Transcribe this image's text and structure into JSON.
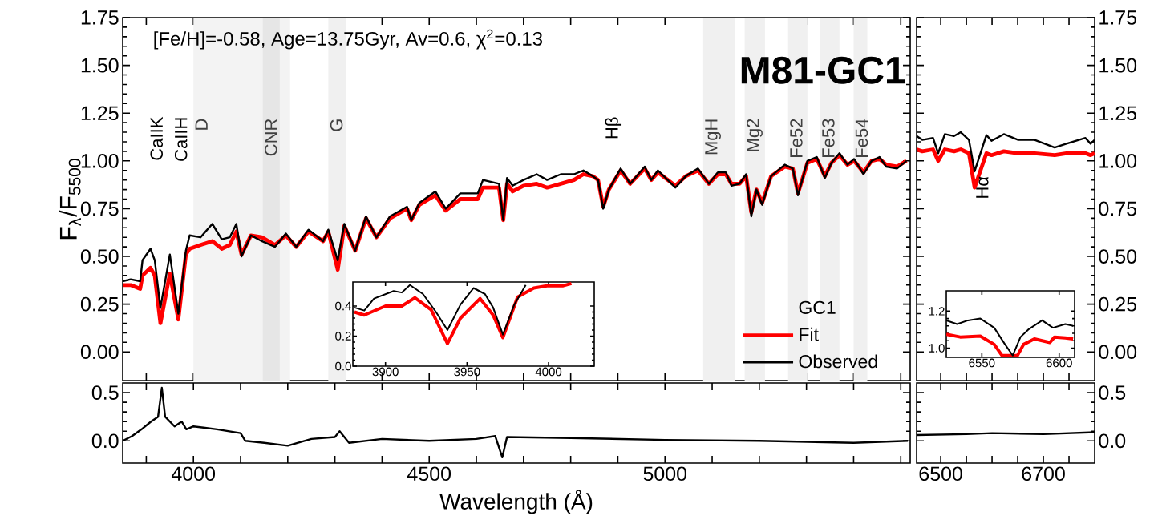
{
  "chart_data": [
    {
      "type": "line",
      "ylabel": "F$_{λ}$/F$_{5500}$",
      "legend_title": "GC1",
      "legend": "bottom right",
      "tick_labels": "y",
      "annotations": [
        "[Fe/H]=-0.58, Age=13.75Gyr, Av=0.6, χ$^{2}$=0.13",
        "M81-GC1",
        "CaIIK",
        "CaIIH",
        "Hβ"
      ],
      "bands": [
        {
          "axis": "x",
          "from": 4000,
          "to": 4205,
          "label": "D",
          "color": "#f3f3f3"
        },
        {
          "axis": "x",
          "from": 4147,
          "to": 4183,
          "label": "CNR",
          "color": "#e6e6e6"
        },
        {
          "axis": "x",
          "from": 4286,
          "to": 4324,
          "label": "G",
          "color": "#f0f0f0"
        },
        {
          "axis": "x",
          "from": 5081,
          "to": 5149,
          "label": "MgH",
          "color": "#f0f0f0"
        },
        {
          "axis": "x",
          "from": 5169,
          "to": 5212,
          "label": "Mg2",
          "color": "#f0f0f0"
        },
        {
          "axis": "x",
          "from": 5261,
          "to": 5302,
          "label": "Fe52",
          "color": "#f0f0f0"
        },
        {
          "axis": "x",
          "from": 5329,
          "to": 5370,
          "label": "Fe53",
          "color": "#f0f0f0"
        },
        {
          "axis": "x",
          "from": 5400,
          "to": 5429,
          "label": "Fe54",
          "color": "#f0f0f0"
        }
      ],
      "x": [
        3850,
        3867,
        3887,
        3892,
        3909,
        3918,
        3930,
        3950,
        3968,
        3984,
        3992,
        4015,
        4040,
        4060,
        4077,
        4091,
        4102,
        4122,
        4145,
        4173,
        4196,
        4218,
        4244,
        4275,
        4286,
        4306,
        4320,
        4343,
        4366,
        4388,
        4417,
        4453,
        4462,
        4479,
        4513,
        4535,
        4566,
        4603,
        4614,
        4648,
        4657,
        4665,
        4677,
        4700,
        4728,
        4750,
        4779,
        4807,
        4827,
        4847,
        4858,
        4869,
        4881,
        4906,
        4926,
        4957,
        4971,
        4985,
        5022,
        5044,
        5070,
        5093,
        5112,
        5129,
        5141,
        5158,
        5172,
        5183,
        5194,
        5206,
        5225,
        5254,
        5271,
        5282,
        5302,
        5322,
        5339,
        5353,
        5370,
        5387,
        5401,
        5421,
        5438,
        5455,
        5469,
        5492,
        5512
      ],
      "series": [
        {
          "name": "Fit",
          "color": "#ff0000",
          "values": [
            0.35,
            0.35,
            0.33,
            0.4,
            0.44,
            0.4,
            0.15,
            0.41,
            0.17,
            0.51,
            0.54,
            0.56,
            0.58,
            0.54,
            0.56,
            0.63,
            0.51,
            0.61,
            0.6,
            0.56,
            0.61,
            0.55,
            0.63,
            0.58,
            0.63,
            0.43,
            0.66,
            0.53,
            0.7,
            0.6,
            0.7,
            0.75,
            0.69,
            0.77,
            0.82,
            0.74,
            0.8,
            0.8,
            0.86,
            0.86,
            0.69,
            0.88,
            0.84,
            0.87,
            0.88,
            0.86,
            0.88,
            0.9,
            0.93,
            0.92,
            0.9,
            0.76,
            0.85,
            0.95,
            0.88,
            0.96,
            0.9,
            0.94,
            0.87,
            0.92,
            0.95,
            0.88,
            0.93,
            0.93,
            0.88,
            0.88,
            0.92,
            0.73,
            0.85,
            0.78,
            0.92,
            0.97,
            0.96,
            0.83,
            0.99,
            1.01,
            0.92,
            0.99,
            1.03,
            0.98,
            1.0,
            0.94,
            1.0,
            1.01,
            0.98,
            0.97,
            1.0
          ]
        },
        {
          "name": "Observed",
          "color": "#000000",
          "values": [
            0.37,
            0.38,
            0.37,
            0.48,
            0.54,
            0.48,
            0.23,
            0.51,
            0.2,
            0.53,
            0.61,
            0.6,
            0.67,
            0.59,
            0.6,
            0.67,
            0.5,
            0.61,
            0.58,
            0.55,
            0.62,
            0.55,
            0.64,
            0.58,
            0.64,
            0.48,
            0.67,
            0.53,
            0.71,
            0.6,
            0.71,
            0.76,
            0.69,
            0.78,
            0.84,
            0.75,
            0.83,
            0.83,
            0.9,
            0.88,
            0.69,
            0.91,
            0.87,
            0.9,
            0.93,
            0.9,
            0.93,
            0.93,
            0.95,
            0.92,
            0.9,
            0.75,
            0.85,
            0.96,
            0.88,
            0.97,
            0.9,
            0.95,
            0.86,
            0.92,
            0.96,
            0.88,
            0.94,
            0.94,
            0.87,
            0.88,
            0.93,
            0.71,
            0.85,
            0.77,
            0.92,
            0.98,
            0.96,
            0.82,
            1.0,
            1.02,
            0.91,
            0.99,
            1.04,
            0.98,
            1.01,
            0.93,
            1.0,
            1.02,
            0.97,
            0.96,
            1.0
          ]
        }
      ],
      "xlim": [
        3850,
        5520
      ],
      "ylim": [
        -0.15,
        1.75
      ],
      "xticks": [
        {
          "value": 3900,
          "label": null
        },
        4000,
        {
          "value": 4100,
          "label": null
        },
        {
          "value": 4200,
          "label": null
        },
        {
          "value": 4300,
          "label": null
        },
        {
          "value": 4400,
          "label": null
        },
        4500,
        {
          "value": 4600,
          "label": null
        },
        {
          "value": 4700,
          "label": null
        },
        {
          "value": 4800,
          "label": null
        },
        {
          "value": 4900,
          "label": null
        },
        5000,
        {
          "value": 5100,
          "label": null
        },
        {
          "value": 5200,
          "label": null
        },
        {
          "value": 5300,
          "label": null
        },
        {
          "value": 5400,
          "label": null
        },
        {
          "value": 5500,
          "label": null
        }
      ],
      "yticks": [
        {
          "value": 0,
          "label": "0.00"
        },
        {
          "value": 0.25,
          "label": "0.25"
        },
        {
          "value": 0.5,
          "label": "0.50"
        },
        {
          "value": 0.75,
          "label": "0.75"
        },
        {
          "value": 1,
          "label": "1.00"
        },
        {
          "value": 1.25,
          "label": "1.25"
        },
        {
          "value": 1.5,
          "label": "1.50"
        },
        {
          "value": 1.75,
          "label": "1.75"
        }
      ]
    },
    {
      "type": "line",
      "series": [
        {
          "color": "#ff0000",
          "x": [
            3881,
            3887,
            3900,
            3910,
            3918,
            3928,
            3938,
            3946,
            3958,
            3966,
            3972,
            3981,
            3991,
            3999,
            4009,
            4014
          ],
          "values": [
            0.36,
            0.34,
            0.4,
            0.4,
            0.455,
            0.375,
            0.15,
            0.32,
            0.45,
            0.34,
            0.19,
            0.46,
            0.52,
            0.535,
            0.535,
            0.55
          ]
        },
        {
          "color": "#000000",
          "x": [
            3881,
            3887,
            3893,
            3905,
            3910,
            3915,
            3923,
            3931,
            3938,
            3946,
            3954,
            3961,
            3966,
            3972,
            3979,
            3986
          ],
          "values": [
            0.39,
            0.37,
            0.45,
            0.5,
            0.49,
            0.54,
            0.48,
            0.36,
            0.24,
            0.41,
            0.52,
            0.48,
            0.39,
            0.21,
            0.41,
            0.54
          ]
        }
      ],
      "xlim": [
        3880,
        4028
      ],
      "ylim": [
        0,
        0.56
      ],
      "xticks": [
        3900,
        3950,
        4000
      ],
      "yticks": [
        {
          "value": 0,
          "label": "0.0"
        },
        {
          "value": 0.2,
          "label": "0.2"
        },
        {
          "value": 0.4,
          "label": "0.4"
        }
      ]
    },
    {
      "type": "line",
      "tick_labels": "y",
      "annotations": [
        {
          "text": "Hα",
          "x": 6581,
          "y": 0.93
        }
      ],
      "x": [
        6453,
        6464,
        6485,
        6495,
        6508,
        6526,
        6539,
        6555,
        6566,
        6589,
        6599,
        6623,
        6651,
        6683,
        6722,
        6745,
        6782,
        6792,
        6800
      ],
      "series": [
        {
          "color": "#ff0000",
          "values": [
            1.06,
            1.05,
            1.06,
            1.0,
            1.06,
            1.05,
            1.06,
            1.04,
            0.86,
            1.04,
            1.03,
            1.05,
            1.04,
            1.04,
            1.03,
            1.04,
            1.04,
            1.03,
            1.04
          ]
        },
        {
          "color": "#000000",
          "values": [
            1.13,
            1.11,
            1.12,
            1.04,
            1.14,
            1.13,
            1.15,
            1.11,
            0.945,
            1.135,
            1.105,
            1.14,
            1.11,
            1.11,
            1.07,
            1.09,
            1.12,
            1.09,
            1.11
          ]
        }
      ],
      "xlim": [
        6453,
        6800
      ],
      "ylim": [
        -0.15,
        1.75
      ],
      "xticks": [
        6500,
        {
          "value": 6550,
          "label": null
        },
        {
          "value": 6600,
          "label": null
        },
        {
          "value": 6650,
          "label": null
        },
        6700,
        {
          "value": 6750,
          "label": null
        }
      ],
      "yticks": [
        {
          "value": 0,
          "label": "0.00"
        },
        {
          "value": 0.25,
          "label": "0.25"
        },
        {
          "value": 0.5,
          "label": "0.50"
        },
        {
          "value": 0.75,
          "label": "0.75"
        },
        {
          "value": 1,
          "label": "1.00"
        },
        {
          "value": 1.25,
          "label": "1.25"
        },
        {
          "value": 1.5,
          "label": "1.50"
        },
        {
          "value": 1.75,
          "label": "1.75"
        }
      ]
    },
    {
      "type": "line",
      "series": [
        {
          "color": "#ff0000",
          "x": [
            6527,
            6536,
            6549,
            6558,
            6563,
            6573,
            6577,
            6584,
            6594,
            6597,
            6604,
            6609
          ],
          "values": [
            1.075,
            1.06,
            1.065,
            1.02,
            0.96,
            0.96,
            1.02,
            1.05,
            1.03,
            1.06,
            1.055,
            1.05
          ]
        },
        {
          "color": "#000000",
          "x": [
            6527,
            6534,
            6541,
            6549,
            6558,
            6565,
            6570,
            6575,
            6580,
            6589,
            6596,
            6604,
            6609
          ],
          "values": [
            1.15,
            1.13,
            1.15,
            1.16,
            1.11,
            1.02,
            0.96,
            1.06,
            1.1,
            1.15,
            1.11,
            1.13,
            1.12
          ]
        }
      ],
      "xlim": [
        6527,
        6610
      ],
      "ylim": [
        0.95,
        1.31
      ],
      "xticks": [
        6550,
        6600
      ],
      "yticks": [
        {
          "value": 1,
          "label": "1.0"
        },
        {
          "value": 1.2,
          "label": "1.2"
        }
      ]
    },
    {
      "type": "line",
      "xlabel": "Wavelength (Å)",
      "x": [
        3850,
        3870,
        3890,
        3910,
        3925,
        3933,
        3940,
        3960,
        3975,
        3985,
        4000,
        4050,
        4100,
        4110,
        4150,
        4200,
        4250,
        4300,
        4310,
        4330,
        4400,
        4500,
        4600,
        4640,
        4655,
        4665,
        4800,
        5000,
        5200,
        5400,
        5515
      ],
      "series": [
        {
          "color": "#000000",
          "values": [
            0.0,
            0.05,
            0.12,
            0.2,
            0.25,
            0.55,
            0.25,
            0.15,
            0.2,
            0.12,
            0.15,
            0.12,
            0.08,
            0.0,
            -0.02,
            -0.05,
            0.02,
            0.04,
            0.1,
            -0.02,
            0.02,
            0.0,
            0.02,
            0.05,
            -0.17,
            0.04,
            0.03,
            0.01,
            0.0,
            -0.02,
            0.0
          ]
        }
      ],
      "xlim": [
        3850,
        5520
      ],
      "ylim": [
        -0.23,
        0.6
      ],
      "xticks": [
        {
          "value": 3900,
          "label": null
        },
        4000,
        {
          "value": 4100,
          "label": null
        },
        {
          "value": 4200,
          "label": null
        },
        {
          "value": 4300,
          "label": null
        },
        {
          "value": 4400,
          "label": null
        },
        4500,
        {
          "value": 4600,
          "label": null
        },
        {
          "value": 4700,
          "label": null
        },
        {
          "value": 4800,
          "label": null
        },
        {
          "value": 4900,
          "label": null
        },
        5000,
        {
          "value": 5100,
          "label": null
        },
        {
          "value": 5200,
          "label": null
        },
        {
          "value": 5300,
          "label": null
        },
        {
          "value": 5400,
          "label": null
        },
        {
          "value": 5500,
          "label": null
        }
      ],
      "yticks": [
        {
          "value": 0,
          "label": "0.0"
        },
        {
          "value": 0.5,
          "label": "0.5"
        }
      ]
    },
    {
      "type": "line",
      "x": [
        6453,
        6550,
        6600,
        6700,
        6800
      ],
      "series": [
        {
          "color": "#000000",
          "values": [
            0.06,
            0.07,
            0.08,
            0.07,
            0.09
          ]
        }
      ],
      "xlim": [
        6453,
        6800
      ],
      "ylim": [
        -0.23,
        0.6
      ],
      "xticks": [
        6500,
        {
          "value": 6550,
          "label": null
        },
        {
          "value": 6600,
          "label": null
        },
        {
          "value": 6650,
          "label": null
        },
        6700,
        {
          "value": 6750,
          "label": null
        }
      ],
      "yticks": [
        {
          "value": 0,
          "label": "0.0"
        },
        {
          "value": 0.5,
          "label": "0.5"
        }
      ]
    }
  ]
}
